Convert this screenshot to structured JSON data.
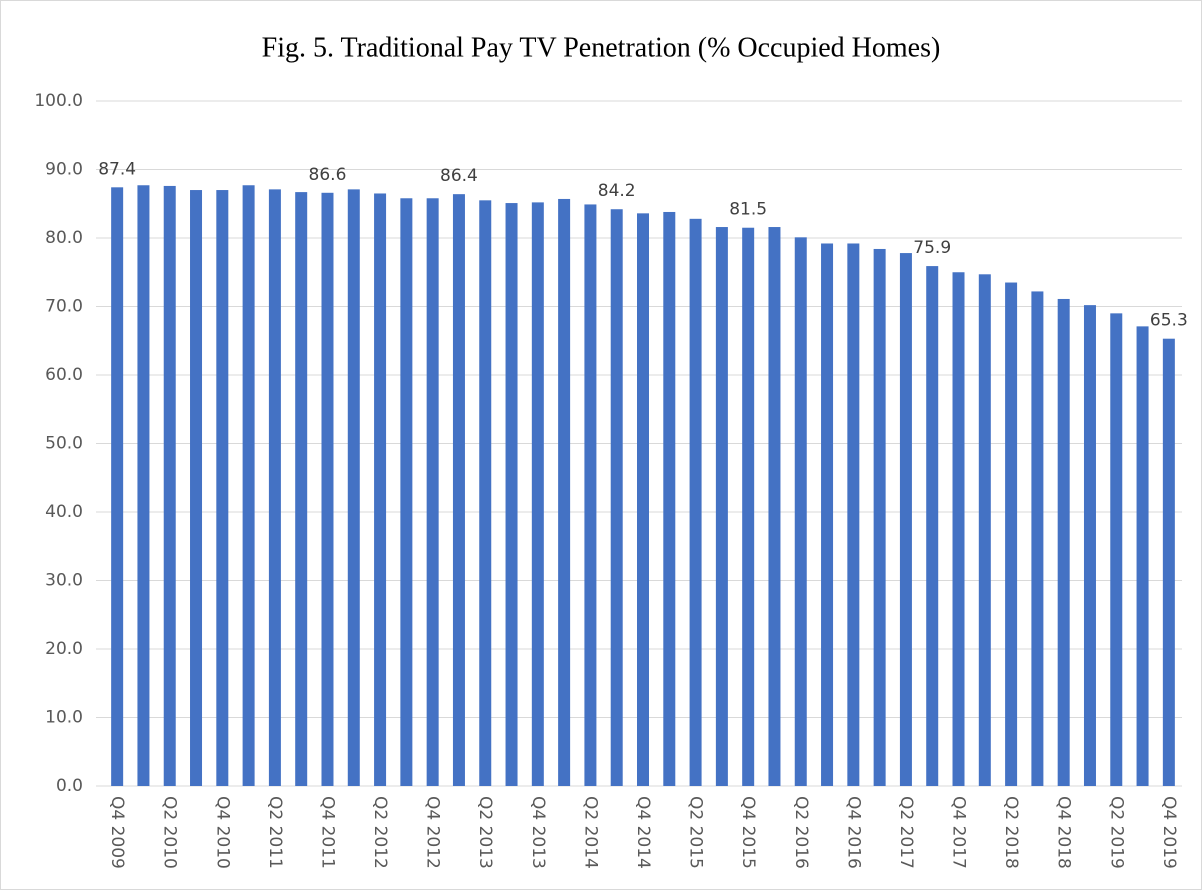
{
  "chart_data": {
    "type": "bar",
    "title": "Fig. 5.  Traditional Pay TV Penetration (% Occupied Homes)",
    "categories": [
      "Q4 2009",
      null,
      "Q2 2010",
      null,
      "Q4 2010",
      null,
      "Q2 2011",
      null,
      "Q4 2011",
      null,
      "Q2 2012",
      null,
      "Q4 2012",
      null,
      "Q2 2013",
      null,
      "Q4 2013",
      null,
      "Q2 2014",
      null,
      "Q4 2014",
      null,
      "Q2 2015",
      null,
      "Q4 2015",
      null,
      "Q2 2016",
      null,
      "Q4 2016",
      null,
      "Q2 2017",
      null,
      "Q4 2017",
      null,
      "Q2 2018",
      null,
      "Q4 2018",
      null,
      "Q2 2019",
      null,
      "Q4 2019"
    ],
    "values": [
      87.4,
      87.7,
      87.6,
      87.0,
      87.0,
      87.7,
      87.1,
      86.7,
      86.6,
      87.1,
      86.5,
      85.8,
      85.8,
      86.4,
      85.5,
      85.1,
      85.2,
      85.7,
      84.9,
      84.2,
      83.6,
      83.8,
      82.8,
      81.6,
      81.5,
      81.6,
      80.1,
      79.2,
      79.2,
      78.4,
      77.8,
      75.9,
      75.0,
      74.7,
      73.5,
      72.2,
      71.1,
      70.2,
      69.0,
      67.1,
      65.3
    ],
    "value_labels": [
      "87.4",
      null,
      null,
      null,
      null,
      null,
      null,
      null,
      "86.6",
      null,
      null,
      null,
      null,
      "86.4",
      null,
      null,
      null,
      null,
      null,
      "84.2",
      null,
      null,
      null,
      null,
      "81.5",
      null,
      null,
      null,
      null,
      null,
      null,
      "75.9",
      null,
      null,
      null,
      null,
      null,
      null,
      null,
      null,
      "65.3"
    ],
    "color": "#4472c4",
    "ylim": [
      0,
      100
    ],
    "yticks": [
      {
        "value": 0,
        "label": "0.0"
      },
      {
        "value": 10,
        "label": "10.0"
      },
      {
        "value": 20,
        "label": "20.0"
      },
      {
        "value": 30,
        "label": "30.0"
      },
      {
        "value": 40,
        "label": "40.0"
      },
      {
        "value": 50,
        "label": "50.0"
      },
      {
        "value": 60,
        "label": "60.0"
      },
      {
        "value": 70,
        "label": "70.0"
      },
      {
        "value": 80,
        "label": "80.0"
      },
      {
        "value": 90,
        "label": "90.0"
      },
      {
        "value": 100,
        "label": "100.0"
      }
    ],
    "grid": true
  }
}
